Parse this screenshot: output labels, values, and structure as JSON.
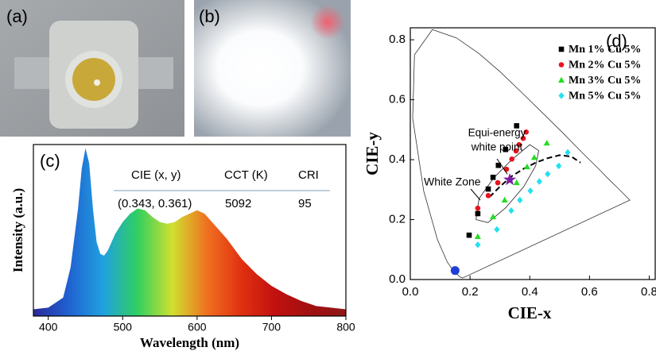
{
  "photos": [
    {
      "label": "(a)"
    },
    {
      "label": "(b)"
    }
  ],
  "chart_data": [
    {
      "type": "area",
      "label": "(c)",
      "x_label": "Wavelength (nm)",
      "y_label": "Intensity (a.u.)",
      "x": [
        380,
        400,
        420,
        430,
        440,
        445,
        450,
        455,
        460,
        465,
        470,
        475,
        480,
        490,
        500,
        510,
        520,
        530,
        540,
        550,
        560,
        570,
        580,
        590,
        600,
        610,
        620,
        640,
        660,
        680,
        700,
        720,
        740,
        760,
        780,
        800
      ],
      "values": [
        0.04,
        0.05,
        0.11,
        0.29,
        0.64,
        0.88,
        1.0,
        0.91,
        0.64,
        0.44,
        0.37,
        0.36,
        0.39,
        0.49,
        0.56,
        0.61,
        0.64,
        0.63,
        0.59,
        0.56,
        0.55,
        0.56,
        0.59,
        0.61,
        0.63,
        0.61,
        0.56,
        0.46,
        0.34,
        0.25,
        0.18,
        0.13,
        0.09,
        0.06,
        0.05,
        0.04
      ],
      "gradient": [
        "#2a2a9a",
        "#2060d0",
        "#20a0e0",
        "#30d060",
        "#d0e030",
        "#f07020",
        "#e03010",
        "#c01010",
        "#a01010",
        "#901818"
      ],
      "xlim": [
        380,
        800
      ],
      "xticks": [
        400,
        500,
        600,
        700,
        800
      ],
      "ylim": [
        0,
        1.05
      ],
      "table": {
        "columns": [
          "CIE (x, y)",
          "CCT (K)",
          "CRI"
        ],
        "rows": [
          [
            "(0.343, 0.361)",
            "5092",
            "95"
          ]
        ]
      }
    },
    {
      "type": "scatter",
      "label": "(d)",
      "x_label": "CIE-x",
      "y_label": "CIE-y",
      "xlim": [
        0,
        0.82
      ],
      "ylim": [
        0,
        0.84
      ],
      "xticks": [
        {
          "value": 0,
          "label": "0.0"
        },
        0.2,
        0.4,
        0.6,
        0.8
      ],
      "yticks": [
        {
          "value": 0,
          "label": "0.0"
        },
        0.2,
        0.4,
        0.6,
        0.8
      ],
      "legend": "upper right",
      "series": [
        {
          "name": "Mn 1% Cu 5%",
          "color": "#000000",
          "marker": "square",
          "x": [
            0.197,
            0.226,
            0.261,
            0.277,
            0.295,
            0.319,
            0.356
          ],
          "values": [
            0.148,
            0.22,
            0.302,
            0.341,
            0.381,
            0.434,
            0.513
          ]
        },
        {
          "name": "Mn 2% Cu 5%",
          "color": "#e8141e",
          "marker": "circle",
          "x": [
            0.226,
            0.261,
            0.293,
            0.322,
            0.34,
            0.354,
            0.364,
            0.378,
            0.388
          ],
          "values": [
            0.238,
            0.28,
            0.323,
            0.368,
            0.402,
            0.429,
            0.45,
            0.471,
            0.492
          ]
        },
        {
          "name": "Mn 3% Cu 5%",
          "color": "#22dd22",
          "marker": "triangle",
          "x": [
            0.226,
            0.277,
            0.316,
            0.356,
            0.391,
            0.415,
            0.457
          ],
          "values": [
            0.143,
            0.209,
            0.265,
            0.323,
            0.376,
            0.407,
            0.455
          ]
        },
        {
          "name": "Mn 5% Cu 5%",
          "color": "#22e0f0",
          "marker": "diamond",
          "x": [
            0.226,
            0.29,
            0.338,
            0.367,
            0.402,
            0.432,
            0.46,
            0.497,
            0.527
          ],
          "values": [
            0.116,
            0.167,
            0.23,
            0.265,
            0.296,
            0.327,
            0.352,
            0.379,
            0.424
          ]
        }
      ],
      "locus": {
        "x": [
          0.175,
          0.166,
          0.144,
          0.124,
          0.091,
          0.045,
          0.008,
          0.014,
          0.074,
          0.155,
          0.23,
          0.302,
          0.373,
          0.444,
          0.513,
          0.575,
          0.627,
          0.665,
          0.692,
          0.735
        ],
        "y": [
          0.005,
          0.009,
          0.03,
          0.058,
          0.133,
          0.295,
          0.538,
          0.75,
          0.834,
          0.806,
          0.754,
          0.692,
          0.624,
          0.555,
          0.487,
          0.424,
          0.373,
          0.334,
          0.308,
          0.265
        ]
      },
      "planckian": {
        "x": [
          0.265,
          0.3,
          0.34,
          0.38,
          0.42,
          0.46,
          0.5,
          0.54,
          0.57
        ],
        "y": [
          0.275,
          0.31,
          0.345,
          0.37,
          0.39,
          0.405,
          0.415,
          0.41,
          0.39
        ]
      },
      "white_zone": {
        "x": [
          0.22,
          0.26,
          0.32,
          0.38,
          0.42,
          0.43,
          0.4,
          0.34,
          0.28,
          0.23
        ],
        "y": [
          0.2,
          0.19,
          0.24,
          0.31,
          0.38,
          0.43,
          0.45,
          0.4,
          0.34,
          0.27
        ]
      },
      "points": [
        {
          "x": 0.15,
          "y": 0.03,
          "color": "#1f3fd6"
        }
      ],
      "white_point": {
        "lines": [
          "Equi-energy",
          "white point"
        ],
        "x": 0.333,
        "y": 0.333,
        "color": "#7b1fa2"
      },
      "zone_label": "White Zone"
    }
  ]
}
